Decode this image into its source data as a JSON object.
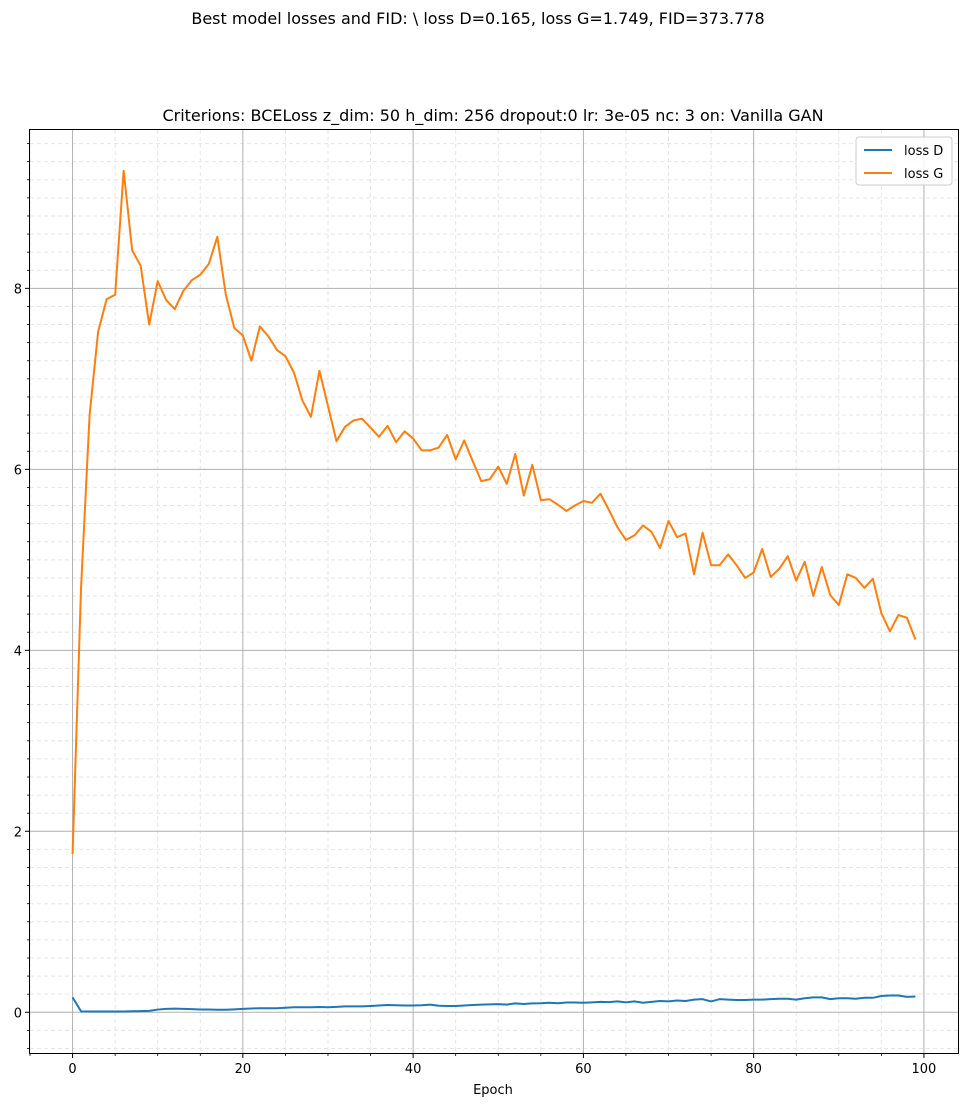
{
  "figure": {
    "suptitle": "Best model losses and FID:  \\ loss D=0.165, loss G=1.749, FID=373.778"
  },
  "chart_data": {
    "type": "line",
    "title": "Criterions: BCELoss  z_dim: 50 h_dim: 256 dropout:0 lr: 3e-05 nc: 3 on: Vanilla GAN",
    "xlabel": "Epoch",
    "ylabel": "",
    "xlim": [
      -5,
      104
    ],
    "ylim": [
      -0.45,
      9.75
    ],
    "xticks": [
      0,
      20,
      40,
      60,
      80,
      100
    ],
    "yticks": [
      0,
      2,
      4,
      6,
      8
    ],
    "grid": {
      "major": true,
      "minor": true,
      "minor_style": "dashed"
    },
    "legend": "top-right",
    "series": [
      {
        "name": "loss D",
        "color": "#1f77b4",
        "values": [
          0.165,
          0.01,
          0.008,
          0.008,
          0.008,
          0.008,
          0.008,
          0.012,
          0.013,
          0.016,
          0.03,
          0.038,
          0.04,
          0.038,
          0.035,
          0.03,
          0.03,
          0.028,
          0.028,
          0.032,
          0.038,
          0.042,
          0.045,
          0.045,
          0.045,
          0.05,
          0.055,
          0.055,
          0.055,
          0.058,
          0.055,
          0.06,
          0.065,
          0.065,
          0.065,
          0.07,
          0.075,
          0.08,
          0.078,
          0.075,
          0.075,
          0.078,
          0.085,
          0.072,
          0.07,
          0.07,
          0.075,
          0.08,
          0.085,
          0.088,
          0.09,
          0.085,
          0.098,
          0.092,
          0.098,
          0.1,
          0.105,
          0.1,
          0.108,
          0.108,
          0.105,
          0.11,
          0.115,
          0.112,
          0.12,
          0.11,
          0.12,
          0.105,
          0.115,
          0.125,
          0.12,
          0.13,
          0.125,
          0.14,
          0.145,
          0.12,
          0.145,
          0.14,
          0.135,
          0.135,
          0.14,
          0.14,
          0.145,
          0.15,
          0.15,
          0.14,
          0.155,
          0.165,
          0.165,
          0.145,
          0.155,
          0.155,
          0.15,
          0.16,
          0.16,
          0.18,
          0.185,
          0.185,
          0.17,
          0.175
        ]
      },
      {
        "name": "loss G",
        "color": "#ff7f0e",
        "values": [
          1.749,
          4.7,
          6.6,
          7.52,
          7.88,
          7.93,
          9.3,
          8.42,
          8.25,
          7.6,
          8.08,
          7.87,
          7.77,
          7.97,
          8.09,
          8.15,
          8.27,
          8.57,
          7.93,
          7.56,
          7.48,
          7.2,
          7.58,
          7.47,
          7.32,
          7.25,
          7.07,
          6.76,
          6.58,
          7.09,
          6.7,
          6.31,
          6.47,
          6.54,
          6.56,
          6.46,
          6.36,
          6.48,
          6.3,
          6.42,
          6.34,
          6.21,
          6.21,
          6.24,
          6.38,
          6.11,
          6.32,
          6.09,
          5.87,
          5.89,
          6.03,
          5.84,
          6.17,
          5.71,
          6.05,
          5.66,
          5.67,
          5.61,
          5.54,
          5.6,
          5.65,
          5.63,
          5.73,
          5.55,
          5.36,
          5.22,
          5.27,
          5.38,
          5.31,
          5.13,
          5.43,
          5.25,
          5.29,
          4.84,
          5.3,
          4.94,
          4.94,
          5.06,
          4.94,
          4.8,
          4.86,
          5.12,
          4.81,
          4.9,
          5.04,
          4.77,
          4.98,
          4.6,
          4.92,
          4.61,
          4.5,
          4.84,
          4.8,
          4.69,
          4.79,
          4.41,
          4.21,
          4.39,
          4.36,
          4.12
        ]
      }
    ]
  }
}
